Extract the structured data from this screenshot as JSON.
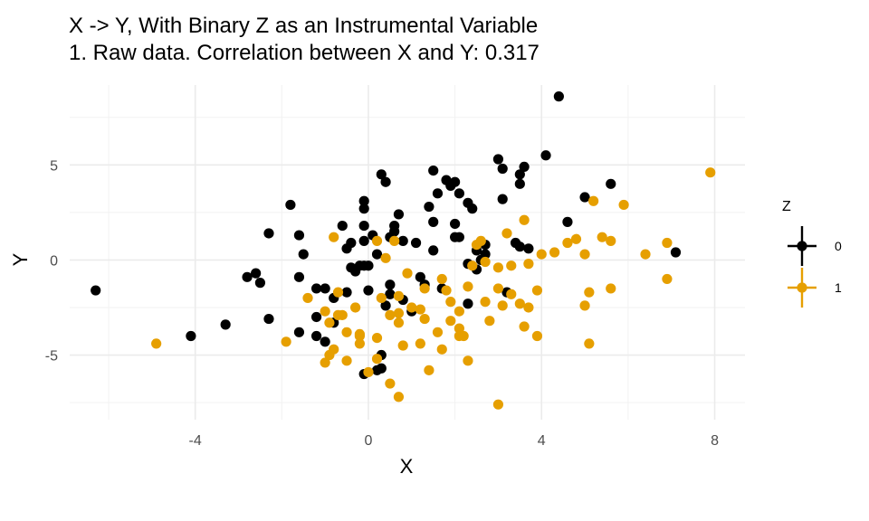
{
  "chart_data": {
    "type": "scatter",
    "title": "X -> Y, With Binary Z as an Instrumental Variable",
    "subtitle": "1. Raw data. Correlation between X and Y: 0.317",
    "xlabel": "X",
    "ylabel": "Y",
    "xlim": [
      -6.9,
      8.7
    ],
    "ylim": [
      -8.4,
      9.2
    ],
    "x_ticks": [
      -4,
      0,
      4,
      8
    ],
    "y_ticks": [
      -5,
      0,
      5
    ],
    "grid": true,
    "legend": {
      "title": "Z",
      "position": "right",
      "entries": [
        "0",
        "1"
      ]
    },
    "series": [
      {
        "name": "0",
        "color": "#000000",
        "points": [
          [
            -6.3,
            -1.6
          ],
          [
            -4.1,
            -4.0
          ],
          [
            -3.3,
            -3.4
          ],
          [
            -2.8,
            -0.9
          ],
          [
            -2.6,
            -0.7
          ],
          [
            -2.5,
            -1.2
          ],
          [
            -2.3,
            1.4
          ],
          [
            -2.3,
            -3.1
          ],
          [
            -1.8,
            2.9
          ],
          [
            -1.6,
            1.3
          ],
          [
            -1.6,
            -0.9
          ],
          [
            -1.6,
            -3.8
          ],
          [
            -1.5,
            0.3
          ],
          [
            -1.2,
            -1.5
          ],
          [
            -1.2,
            -3.0
          ],
          [
            -1.2,
            -4.0
          ],
          [
            -1.0,
            -1.5
          ],
          [
            -1.0,
            -4.3
          ],
          [
            -0.8,
            -2.0
          ],
          [
            -0.6,
            1.8
          ],
          [
            -0.5,
            0.6
          ],
          [
            -0.5,
            -1.7
          ],
          [
            -0.4,
            -0.4
          ],
          [
            -0.4,
            0.9
          ],
          [
            -0.3,
            -0.6
          ],
          [
            -0.2,
            -0.3
          ],
          [
            -0.1,
            3.1
          ],
          [
            -0.1,
            2.7
          ],
          [
            -0.1,
            1.8
          ],
          [
            -0.1,
            1.0
          ],
          [
            -0.1,
            -0.3
          ],
          [
            0.0,
            -1.6
          ],
          [
            0.0,
            -0.3
          ],
          [
            0.1,
            1.3
          ],
          [
            0.2,
            0.3
          ],
          [
            0.3,
            -5.7
          ],
          [
            0.3,
            -5.0
          ],
          [
            0.3,
            4.5
          ],
          [
            0.4,
            4.1
          ],
          [
            0.4,
            -2.4
          ],
          [
            0.5,
            -1.3
          ],
          [
            0.5,
            -1.8
          ],
          [
            0.5,
            1.2
          ],
          [
            0.6,
            1.5
          ],
          [
            0.6,
            1.8
          ],
          [
            0.7,
            2.4
          ],
          [
            0.8,
            1.0
          ],
          [
            0.8,
            -2.1
          ],
          [
            1.0,
            -2.7
          ],
          [
            1.1,
            0.9
          ],
          [
            1.2,
            -0.9
          ],
          [
            1.3,
            -1.3
          ],
          [
            1.4,
            2.8
          ],
          [
            1.5,
            4.7
          ],
          [
            1.5,
            2.0
          ],
          [
            1.5,
            0.5
          ],
          [
            1.6,
            3.5
          ],
          [
            1.7,
            -1.5
          ],
          [
            1.8,
            4.2
          ],
          [
            1.9,
            3.9
          ],
          [
            2.0,
            4.1
          ],
          [
            2.0,
            1.9
          ],
          [
            2.0,
            1.2
          ],
          [
            2.1,
            3.5
          ],
          [
            2.1,
            1.2
          ],
          [
            2.3,
            3.0
          ],
          [
            2.3,
            -0.2
          ],
          [
            2.3,
            -2.3
          ],
          [
            2.4,
            2.7
          ],
          [
            2.5,
            0.5
          ],
          [
            2.5,
            -0.5
          ],
          [
            2.6,
            0.0
          ],
          [
            2.7,
            0.3
          ],
          [
            2.7,
            0.8
          ],
          [
            3.0,
            5.3
          ],
          [
            3.1,
            3.2
          ],
          [
            3.1,
            4.8
          ],
          [
            3.2,
            -1.7
          ],
          [
            3.4,
            0.9
          ],
          [
            3.5,
            0.7
          ],
          [
            3.5,
            4.5
          ],
          [
            3.5,
            4.0
          ],
          [
            3.6,
            4.9
          ],
          [
            3.7,
            0.6
          ],
          [
            4.1,
            5.5
          ],
          [
            4.4,
            8.6
          ],
          [
            4.6,
            2.0
          ],
          [
            5.0,
            3.3
          ],
          [
            5.6,
            4.0
          ],
          [
            7.1,
            0.4
          ],
          [
            -0.1,
            -6.0
          ],
          [
            0.2,
            -5.8
          ],
          [
            -0.8,
            -3.3
          ]
        ]
      },
      {
        "name": "1",
        "color": "#E69F00",
        "points": [
          [
            -4.9,
            -4.4
          ],
          [
            -1.9,
            -4.3
          ],
          [
            -1.4,
            -2.0
          ],
          [
            -1.0,
            -2.7
          ],
          [
            -1.0,
            -5.4
          ],
          [
            -0.9,
            -3.3
          ],
          [
            -0.8,
            -4.7
          ],
          [
            -0.8,
            1.2
          ],
          [
            -0.7,
            -1.7
          ],
          [
            -0.7,
            -2.9
          ],
          [
            -0.6,
            -2.9
          ],
          [
            -0.5,
            -5.3
          ],
          [
            -0.5,
            -3.8
          ],
          [
            -0.3,
            -2.5
          ],
          [
            -0.2,
            -4.0
          ],
          [
            -0.2,
            -4.4
          ],
          [
            -0.2,
            -3.9
          ],
          [
            0.0,
            -5.9
          ],
          [
            0.2,
            -4.1
          ],
          [
            0.2,
            -5.2
          ],
          [
            0.4,
            0.1
          ],
          [
            0.5,
            -2.9
          ],
          [
            0.5,
            -6.5
          ],
          [
            0.6,
            1.0
          ],
          [
            0.7,
            -1.9
          ],
          [
            0.7,
            -2.8
          ],
          [
            0.7,
            -3.3
          ],
          [
            0.7,
            -7.2
          ],
          [
            0.8,
            -4.5
          ],
          [
            0.9,
            -0.7
          ],
          [
            1.0,
            -2.5
          ],
          [
            1.2,
            -2.6
          ],
          [
            1.2,
            -4.4
          ],
          [
            1.3,
            -1.5
          ],
          [
            1.3,
            -3.1
          ],
          [
            1.4,
            -5.8
          ],
          [
            1.6,
            -3.8
          ],
          [
            1.7,
            -1.0
          ],
          [
            1.7,
            -4.7
          ],
          [
            1.8,
            -1.6
          ],
          [
            1.9,
            -2.2
          ],
          [
            1.9,
            -3.2
          ],
          [
            2.1,
            -2.7
          ],
          [
            2.1,
            -3.6
          ],
          [
            2.1,
            -4.0
          ],
          [
            2.2,
            -4.0
          ],
          [
            2.3,
            -1.4
          ],
          [
            2.3,
            -5.3
          ],
          [
            2.4,
            -0.3
          ],
          [
            2.5,
            0.8
          ],
          [
            2.7,
            -0.1
          ],
          [
            2.7,
            -2.2
          ],
          [
            2.8,
            -3.2
          ],
          [
            3.0,
            -0.4
          ],
          [
            3.0,
            -1.5
          ],
          [
            3.0,
            -7.6
          ],
          [
            3.1,
            -2.4
          ],
          [
            3.2,
            1.4
          ],
          [
            3.3,
            -0.3
          ],
          [
            3.3,
            -1.8
          ],
          [
            3.5,
            -2.3
          ],
          [
            3.6,
            -3.5
          ],
          [
            3.7,
            -2.5
          ],
          [
            3.7,
            -0.2
          ],
          [
            3.9,
            -4.0
          ],
          [
            3.9,
            -1.6
          ],
          [
            4.0,
            0.3
          ],
          [
            4.6,
            0.9
          ],
          [
            4.8,
            1.1
          ],
          [
            5.0,
            0.3
          ],
          [
            5.0,
            -2.4
          ],
          [
            5.1,
            -4.4
          ],
          [
            5.1,
            -1.7
          ],
          [
            5.2,
            3.1
          ],
          [
            5.4,
            1.2
          ],
          [
            5.6,
            1.0
          ],
          [
            5.6,
            -1.5
          ],
          [
            5.9,
            2.9
          ],
          [
            6.4,
            0.3
          ],
          [
            6.9,
            0.9
          ],
          [
            6.9,
            -1.0
          ],
          [
            7.9,
            4.6
          ],
          [
            -0.9,
            -5.0
          ],
          [
            0.3,
            -2.0
          ],
          [
            3.6,
            2.1
          ],
          [
            2.6,
            1.0
          ],
          [
            0.2,
            1.0
          ],
          [
            4.3,
            0.4
          ]
        ]
      }
    ]
  }
}
